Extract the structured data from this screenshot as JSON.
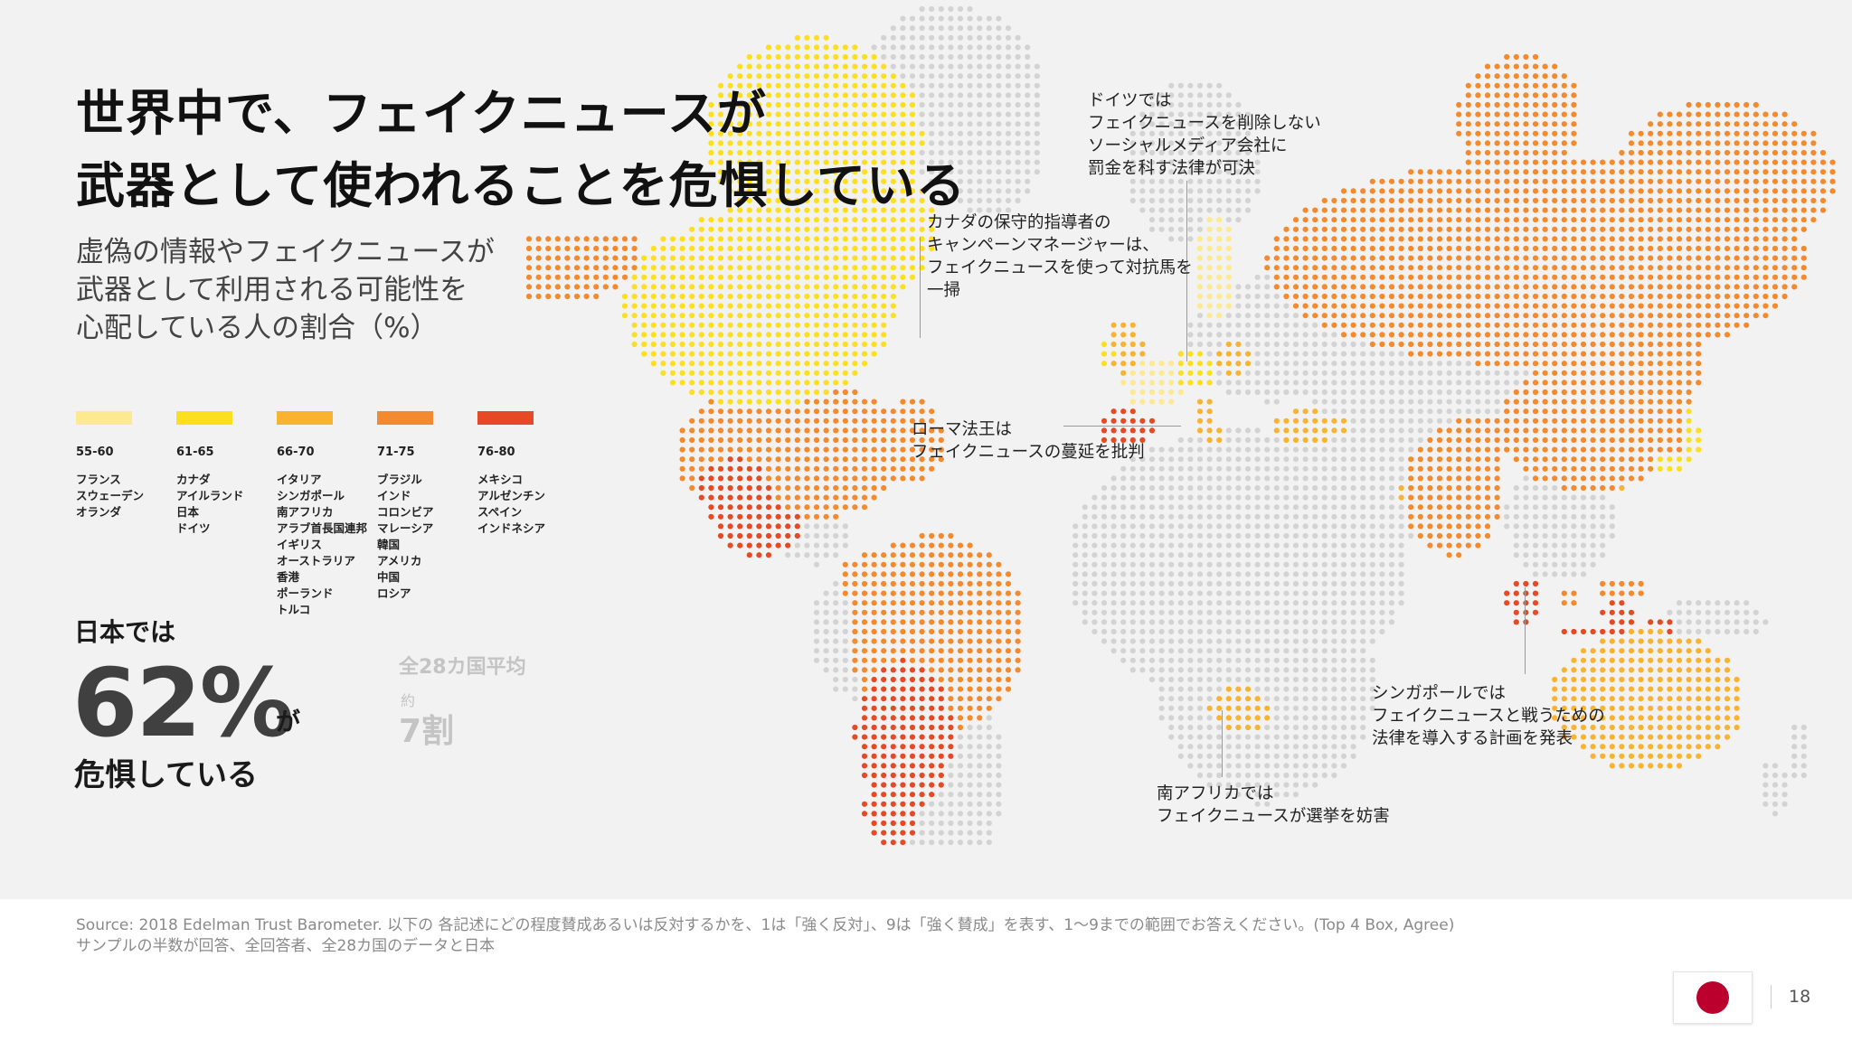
{
  "title": {
    "line1": "世界中で、フェイクニュースが",
    "line2": "武器として使われることを危惧している"
  },
  "subtitle": {
    "line1": "虚偽の情報やフェイクニュースが",
    "line2": "武器として利用される可能性を",
    "line3": "心配している人の割合（%）"
  },
  "legend": [
    {
      "range": "55-60",
      "color": "#fde98f",
      "countries": [
        "フランス",
        "スウェーデン",
        "オランダ"
      ]
    },
    {
      "range": "61-65",
      "color": "#fcdf1f",
      "countries": [
        "カナダ",
        "アイルランド",
        "日本",
        "ドイツ"
      ]
    },
    {
      "range": "66-70",
      "color": "#f9b331",
      "countries": [
        "イタリア",
        "シンガポール",
        "南アフリカ",
        "アラブ首長国連邦",
        "イギリス",
        "オーストラリア",
        "香港",
        "ポーランド",
        "トルコ"
      ]
    },
    {
      "range": "71-75",
      "color": "#f48a2e",
      "countries": [
        "ブラジル",
        "インド",
        "コロンビア",
        "マレーシア",
        "韓国",
        "アメリカ",
        "中国",
        "ロシア"
      ]
    },
    {
      "range": "76-80",
      "color": "#e64a25",
      "countries": [
        "メキシコ",
        "アルゼンチン",
        "スペイン",
        "インドネシア"
      ]
    }
  ],
  "japan": {
    "intro": "日本では",
    "value": "62%",
    "suffix": "が",
    "outro": "危惧している"
  },
  "average": {
    "label": "全28カ国平均",
    "approx": "約",
    "value": "7割"
  },
  "annotations": {
    "germany": [
      "ドイツでは",
      "フェイクニュースを削除しない",
      "ソーシャルメディア会社に",
      "罰金を科す法律が可決"
    ],
    "canada": [
      "カナダの保守的指導者の",
      "キャンペーンマネージャーは、",
      "フェイクニュースを使って対抗馬を",
      "一掃"
    ],
    "pope": [
      "ローマ法王は",
      "フェイクニュースの蔓延を批判"
    ],
    "singapore": [
      "シンガポールでは",
      "フェイクニュースと戦うための",
      "法律を導入する計画を発表"
    ],
    "south_africa": [
      "南アフリカでは",
      "フェイクニュースが選挙を妨害"
    ]
  },
  "map_colors": {
    "no_data": "#d3d3d3",
    "background": "#f2f2f2"
  },
  "source": {
    "line1": "Source: 2018 Edelman Trust Barometer. 以下の 各記述にどの程度賛成あるいは反対するかを、1は「強く反対」、9は「強く賛成」を表す、1～9までの範囲でお答えください。(Top 4 Box, Agree)",
    "line2": "サンプルの半数が回答、全回答者、全28カ国のデータと日本"
  },
  "footer": {
    "flag_icon": "japan-flag-icon",
    "page_number": "18"
  }
}
